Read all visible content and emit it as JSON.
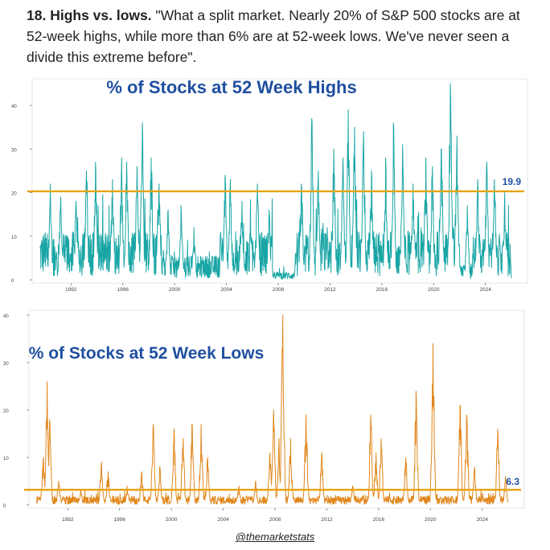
{
  "caption": {
    "heading": "18. Highs vs. lows.",
    "text": " \"What a split market. Nearly 20% of S&P 500 stocks are at 52-week highs, while more than 6% are at 52-week lows. We've never seen a divide this extreme before\"."
  },
  "credit": "@themarketstats",
  "chart_data": [
    {
      "type": "line",
      "title": "% of Stocks at 52 Week Highs",
      "series_color": "#1aa5a5",
      "reference_color": "#e8a317",
      "title_color": "#1f4fa0",
      "x_range": [
        1989,
        2027
      ],
      "ylim": [
        0,
        45
      ],
      "y_ticks": [
        0,
        10,
        20,
        30,
        40
      ],
      "x_ticks": [
        "1992",
        "1996",
        "2000",
        "2004",
        "2008",
        "2012",
        "2016",
        "2020",
        "2024"
      ],
      "reference_value": 20.3,
      "last_value_label": "19.9",
      "peaks": [
        {
          "x": 1990.4,
          "y": 22
        },
        {
          "x": 1991.2,
          "y": 19
        },
        {
          "x": 1992.4,
          "y": 18
        },
        {
          "x": 1993.2,
          "y": 25
        },
        {
          "x": 1993.9,
          "y": 27
        },
        {
          "x": 1995.2,
          "y": 23
        },
        {
          "x": 1995.9,
          "y": 28
        },
        {
          "x": 1996.3,
          "y": 27
        },
        {
          "x": 1997.1,
          "y": 26
        },
        {
          "x": 1997.5,
          "y": 36
        },
        {
          "x": 1998.2,
          "y": 28
        },
        {
          "x": 1998.8,
          "y": 22
        },
        {
          "x": 1999.5,
          "y": 16
        },
        {
          "x": 2000.5,
          "y": 17
        },
        {
          "x": 2001.5,
          "y": 12
        },
        {
          "x": 2003.9,
          "y": 24
        },
        {
          "x": 2004.3,
          "y": 23
        },
        {
          "x": 2005.2,
          "y": 18
        },
        {
          "x": 2006.4,
          "y": 22
        },
        {
          "x": 2007.3,
          "y": 16
        },
        {
          "x": 2009.8,
          "y": 22
        },
        {
          "x": 2010.6,
          "y": 37
        },
        {
          "x": 2011.1,
          "y": 25
        },
        {
          "x": 2012.3,
          "y": 30
        },
        {
          "x": 2013.0,
          "y": 28
        },
        {
          "x": 2013.4,
          "y": 39
        },
        {
          "x": 2013.9,
          "y": 35
        },
        {
          "x": 2014.6,
          "y": 34
        },
        {
          "x": 2015.2,
          "y": 25
        },
        {
          "x": 2016.3,
          "y": 28
        },
        {
          "x": 2016.9,
          "y": 36
        },
        {
          "x": 2017.6,
          "y": 31
        },
        {
          "x": 2018.4,
          "y": 22
        },
        {
          "x": 2019.4,
          "y": 28
        },
        {
          "x": 2019.9,
          "y": 26
        },
        {
          "x": 2020.6,
          "y": 30
        },
        {
          "x": 2021.3,
          "y": 45
        },
        {
          "x": 2021.8,
          "y": 33
        },
        {
          "x": 2022.6,
          "y": 17
        },
        {
          "x": 2023.4,
          "y": 23
        },
        {
          "x": 2024.1,
          "y": 27
        },
        {
          "x": 2024.7,
          "y": 23
        },
        {
          "x": 2025.5,
          "y": 20
        }
      ],
      "baseline": [
        {
          "from": 1989.6,
          "to": 1999.0,
          "level": 6
        },
        {
          "from": 1999.0,
          "to": 2003.5,
          "level": 3
        },
        {
          "from": 2003.5,
          "to": 2007.6,
          "level": 6
        },
        {
          "from": 2007.6,
          "to": 2009.3,
          "level": 1
        },
        {
          "from": 2009.3,
          "to": 2022.0,
          "level": 6
        },
        {
          "from": 2022.0,
          "to": 2023.0,
          "level": 2
        },
        {
          "from": 2023.0,
          "to": 2026.0,
          "level": 6
        }
      ]
    },
    {
      "type": "line",
      "title": "% of Stocks at 52 Week Lows",
      "series_color": "#e0861b",
      "reference_color": "#e8a317",
      "title_color": "#1f4fa0",
      "x_range": [
        1989,
        2027
      ],
      "ylim": [
        0,
        40
      ],
      "y_ticks": [
        0,
        10,
        20,
        30,
        40
      ],
      "x_ticks": [
        "1992",
        "1996",
        "2000",
        "2004",
        "2008",
        "2012",
        "2016",
        "2020",
        "2024"
      ],
      "reference_value": 3.2,
      "last_value_label": "6.3",
      "peaks": [
        {
          "x": 1990.1,
          "y": 10
        },
        {
          "x": 1990.4,
          "y": 26
        },
        {
          "x": 1990.6,
          "y": 18
        },
        {
          "x": 1991.3,
          "y": 5
        },
        {
          "x": 1993.0,
          "y": 3
        },
        {
          "x": 1994.6,
          "y": 9
        },
        {
          "x": 1995.1,
          "y": 7
        },
        {
          "x": 1996.6,
          "y": 4
        },
        {
          "x": 1997.7,
          "y": 7
        },
        {
          "x": 1998.6,
          "y": 17
        },
        {
          "x": 1999.1,
          "y": 8
        },
        {
          "x": 2000.2,
          "y": 16
        },
        {
          "x": 2000.9,
          "y": 14
        },
        {
          "x": 2001.6,
          "y": 17
        },
        {
          "x": 2002.3,
          "y": 17
        },
        {
          "x": 2002.8,
          "y": 10
        },
        {
          "x": 2005.2,
          "y": 4
        },
        {
          "x": 2006.5,
          "y": 5
        },
        {
          "x": 2007.6,
          "y": 11
        },
        {
          "x": 2007.9,
          "y": 20
        },
        {
          "x": 2008.3,
          "y": 14
        },
        {
          "x": 2008.6,
          "y": 41
        },
        {
          "x": 2009.2,
          "y": 14
        },
        {
          "x": 2010.4,
          "y": 19
        },
        {
          "x": 2011.6,
          "y": 11
        },
        {
          "x": 2014.0,
          "y": 4
        },
        {
          "x": 2015.4,
          "y": 19
        },
        {
          "x": 2015.8,
          "y": 11
        },
        {
          "x": 2016.2,
          "y": 14
        },
        {
          "x": 2018.1,
          "y": 10
        },
        {
          "x": 2018.9,
          "y": 24
        },
        {
          "x": 2020.2,
          "y": 34
        },
        {
          "x": 2022.3,
          "y": 21
        },
        {
          "x": 2022.8,
          "y": 19
        },
        {
          "x": 2023.4,
          "y": 8
        },
        {
          "x": 2025.2,
          "y": 16
        },
        {
          "x": 2025.8,
          "y": 6
        }
      ],
      "baseline": [
        {
          "from": 1989.6,
          "to": 2026.0,
          "level": 1
        }
      ]
    }
  ]
}
